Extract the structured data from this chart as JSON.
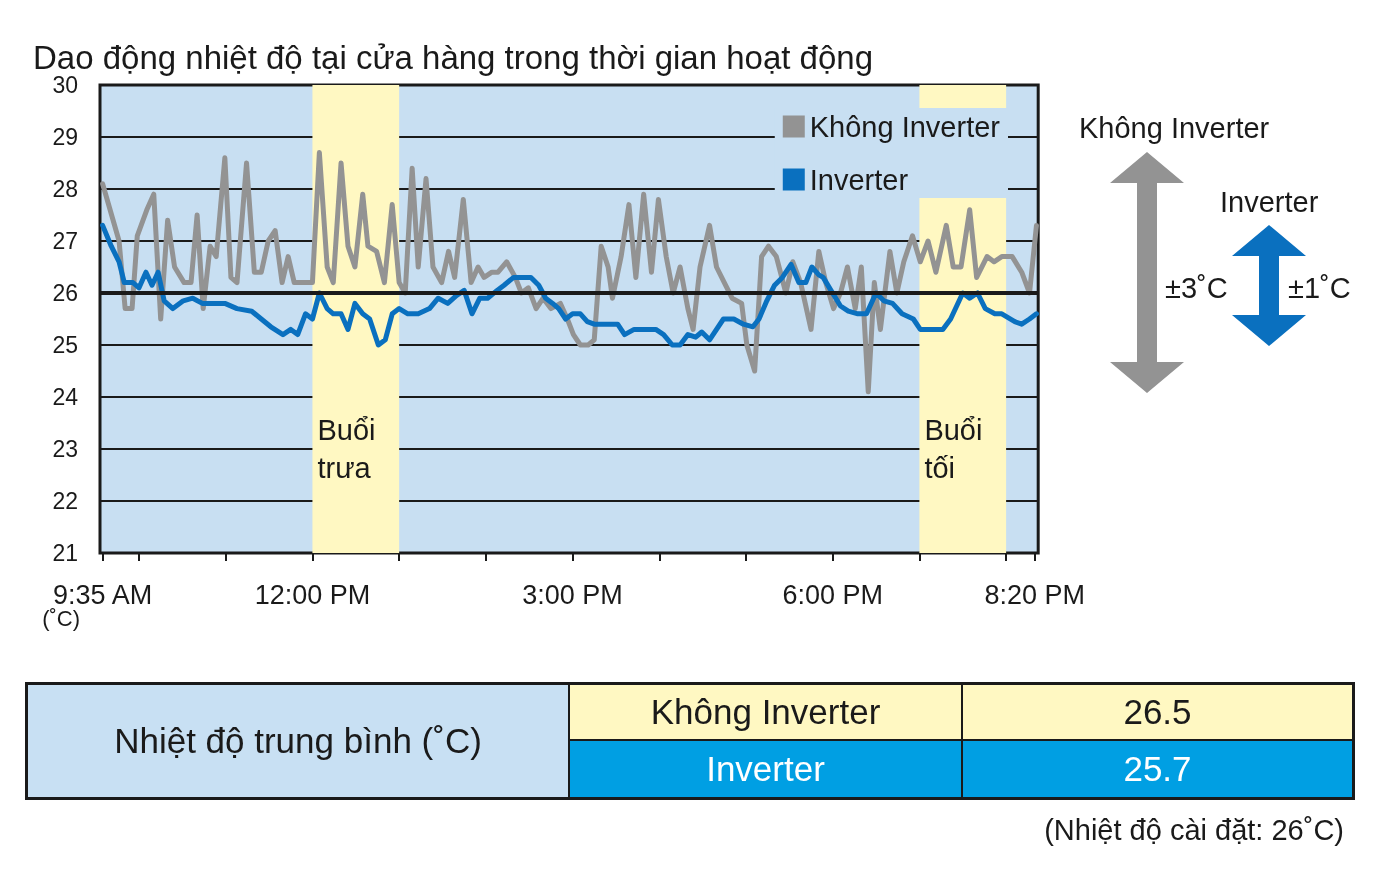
{
  "chart_data": {
    "type": "line",
    "title": "Dao động nhiệt độ tại cửa hàng trong thời gian hoạt động",
    "ylabel": "(˚C)",
    "xlim": [
      9.55,
      20.37
    ],
    "xticks": [
      {
        "value": 9.58,
        "label": "9:35 AM"
      },
      {
        "value": 10,
        "label": null
      },
      {
        "value": 11,
        "label": null
      },
      {
        "value": 12,
        "label": "12:00 PM"
      },
      {
        "value": 13,
        "label": null
      },
      {
        "value": 14,
        "label": null
      },
      {
        "value": 15,
        "label": "3:00 PM"
      },
      {
        "value": 16,
        "label": null
      },
      {
        "value": 17,
        "label": null
      },
      {
        "value": 18,
        "label": "6:00 PM"
      },
      {
        "value": 19,
        "label": null
      },
      {
        "value": 20,
        "label": null
      },
      {
        "value": 20.33,
        "label": "8:20 PM"
      }
    ],
    "ylim": [
      21,
      30
    ],
    "yticks": [
      21,
      22,
      23,
      24,
      25,
      26,
      27,
      28,
      29,
      30
    ],
    "grid": "y",
    "legend": "top right",
    "marker": "none",
    "line_style": "solid",
    "ref_lines": [
      {
        "axis": "y",
        "value": 26,
        "color": "#1a1a1a"
      }
    ],
    "bands": [
      {
        "axis": "x",
        "from": 12,
        "to": 13,
        "label": "Buổi\ntrưa",
        "color": "#fff8c2"
      },
      {
        "axis": "x",
        "from": 19,
        "to": 20,
        "label": "Buổi\ntối",
        "color": "#fff8c2"
      }
    ],
    "series": [
      {
        "name": "Không Inverter",
        "color": "#939393",
        "x": [
          9.58,
          9.77,
          9.84,
          9.92,
          9.98,
          10.09,
          10.17,
          10.25,
          10.33,
          10.41,
          10.52,
          10.6,
          10.67,
          10.74,
          10.82,
          10.89,
          10.99,
          11.06,
          11.13,
          11.24,
          11.33,
          11.41,
          11.49,
          11.57,
          11.65,
          11.72,
          11.79,
          11.94,
          12.0,
          12.08,
          12.17,
          12.24,
          12.33,
          12.41,
          12.49,
          12.58,
          12.64,
          12.74,
          12.83,
          12.92,
          13.0,
          13.07,
          13.15,
          13.22,
          13.31,
          13.39,
          13.49,
          13.57,
          13.64,
          13.74,
          13.83,
          13.91,
          13.98,
          14.07,
          14.14,
          14.24,
          14.34,
          14.41,
          14.49,
          14.58,
          14.66,
          14.75,
          14.86,
          14.94,
          15.01,
          15.09,
          15.18,
          15.25,
          15.33,
          15.41,
          15.46,
          15.56,
          15.65,
          15.73,
          15.82,
          15.91,
          15.99,
          16.08,
          16.16,
          16.24,
          16.33,
          16.39,
          16.47,
          16.58,
          16.66,
          16.75,
          16.84,
          16.95,
          17.01,
          17.1,
          17.18,
          17.26,
          17.35,
          17.46,
          17.54,
          17.63,
          17.75,
          17.84,
          17.92,
          18.01,
          18.09,
          18.17,
          18.26,
          18.33,
          18.41,
          18.48,
          18.55,
          18.66,
          18.74,
          18.82,
          18.92,
          19.01,
          19.1,
          19.19,
          19.31,
          19.39,
          19.48,
          19.58,
          19.66,
          19.78,
          19.86,
          19.95,
          20.07,
          20.18,
          20.27,
          20.35
        ],
        "values": [
          28.1,
          27.0,
          25.7,
          25.7,
          27.1,
          27.6,
          27.9,
          25.5,
          27.4,
          26.5,
          26.2,
          26.2,
          27.5,
          25.7,
          26.9,
          26.7,
          28.6,
          26.3,
          26.2,
          28.5,
          26.4,
          26.4,
          27.0,
          27.2,
          26.2,
          26.7,
          26.2,
          26.2,
          26.2,
          28.7,
          26.5,
          26.2,
          28.5,
          26.9,
          26.5,
          27.9,
          26.9,
          26.8,
          26.2,
          27.7,
          26.2,
          26.0,
          28.4,
          26.5,
          28.2,
          26.5,
          26.2,
          26.8,
          26.3,
          27.8,
          26.2,
          26.5,
          26.3,
          26.4,
          26.4,
          26.6,
          26.3,
          26.0,
          26.1,
          25.7,
          25.9,
          25.7,
          25.8,
          25.5,
          25.2,
          25.0,
          25.0,
          25.1,
          26.9,
          26.5,
          25.9,
          26.7,
          27.7,
          26.3,
          27.9,
          26.4,
          27.8,
          26.7,
          26.0,
          26.5,
          25.7,
          25.3,
          26.5,
          27.3,
          26.5,
          26.2,
          25.9,
          25.8,
          25.0,
          24.5,
          26.7,
          26.9,
          26.7,
          26.0,
          26.6,
          26.2,
          25.3,
          26.8,
          26.2,
          25.7,
          26.0,
          26.5,
          25.7,
          26.5,
          24.1,
          26.2,
          25.3,
          26.8,
          26.0,
          26.6,
          27.1,
          26.6,
          27.0,
          26.4,
          27.3,
          26.5,
          26.5,
          27.6,
          26.3,
          26.7,
          26.6,
          26.7,
          26.7,
          26.4,
          26.0,
          27.3
        ]
      },
      {
        "name": "Inverter",
        "color": "#0a70bf",
        "x": [
          9.58,
          9.68,
          9.77,
          9.83,
          9.93,
          10.0,
          10.08,
          10.15,
          10.22,
          10.29,
          10.39,
          10.51,
          10.62,
          10.73,
          10.81,
          10.9,
          10.99,
          11.13,
          11.3,
          11.41,
          11.52,
          11.66,
          11.75,
          11.83,
          11.92,
          12.0,
          12.08,
          12.17,
          12.24,
          12.33,
          12.41,
          12.49,
          12.58,
          12.66,
          12.76,
          12.84,
          12.92,
          13.0,
          13.1,
          13.22,
          13.35,
          13.45,
          13.56,
          13.66,
          13.75,
          13.84,
          13.93,
          14.02,
          14.13,
          14.21,
          14.32,
          14.41,
          14.52,
          14.61,
          14.69,
          14.77,
          14.84,
          14.92,
          15.0,
          15.09,
          15.17,
          15.25,
          15.43,
          15.52,
          15.6,
          15.71,
          15.88,
          15.96,
          16.05,
          16.15,
          16.24,
          16.33,
          16.42,
          16.49,
          16.58,
          16.74,
          16.86,
          16.97,
          17.08,
          17.15,
          17.24,
          17.33,
          17.42,
          17.52,
          17.61,
          17.69,
          17.76,
          17.84,
          17.89,
          17.98,
          18.09,
          18.18,
          18.29,
          18.39,
          18.5,
          18.59,
          18.69,
          18.8,
          18.93,
          19.01,
          19.11,
          19.27,
          19.36,
          19.5,
          19.58,
          19.67,
          19.76,
          19.87,
          19.95,
          20.1,
          20.18,
          20.27,
          20.35
        ],
        "values": [
          27.3,
          26.9,
          26.6,
          26.2,
          26.2,
          26.1,
          26.4,
          26.15,
          26.4,
          25.85,
          25.7,
          25.85,
          25.9,
          25.8,
          25.8,
          25.8,
          25.8,
          25.7,
          25.65,
          25.5,
          25.35,
          25.2,
          25.3,
          25.2,
          25.6,
          25.5,
          26.0,
          25.7,
          25.6,
          25.6,
          25.3,
          25.8,
          25.6,
          25.5,
          25.0,
          25.1,
          25.6,
          25.7,
          25.6,
          25.6,
          25.7,
          25.9,
          25.8,
          25.95,
          26.05,
          25.6,
          25.9,
          25.9,
          26.05,
          26.15,
          26.3,
          26.3,
          26.3,
          26.15,
          25.9,
          25.8,
          25.7,
          25.5,
          25.6,
          25.6,
          25.45,
          25.4,
          25.4,
          25.4,
          25.2,
          25.3,
          25.3,
          25.3,
          25.2,
          25.0,
          25.0,
          25.2,
          25.15,
          25.25,
          25.1,
          25.5,
          25.5,
          25.4,
          25.35,
          25.5,
          25.85,
          26.15,
          26.3,
          26.55,
          26.2,
          26.2,
          26.5,
          26.35,
          26.3,
          26.05,
          25.75,
          25.65,
          25.6,
          25.6,
          26.0,
          25.85,
          25.8,
          25.6,
          25.5,
          25.3,
          25.3,
          25.3,
          25.5,
          26.0,
          25.9,
          26.0,
          25.7,
          25.6,
          25.6,
          25.45,
          25.4,
          25.5,
          25.6
        ]
      }
    ],
    "annotations": [
      "Không Inverter",
      "±3˚C",
      "Inverter",
      "±1˚C",
      "Nhiệt độ trung bình (˚C)",
      "Không Inverter",
      "26.5",
      "Inverter",
      "25.7",
      "(Nhiệt độ cài đặt: 26˚C)"
    ]
  }
}
